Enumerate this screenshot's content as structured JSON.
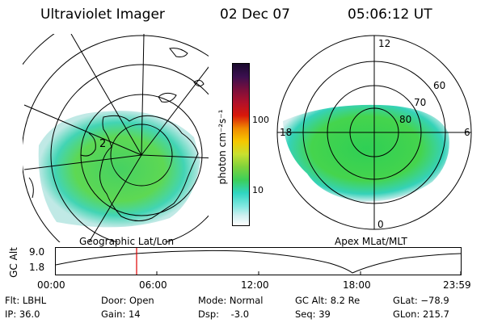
{
  "header": {
    "instrument": "Ultraviolet Imager",
    "date": "02 Dec 07",
    "time": "05:06:12 UT"
  },
  "geo_map": {
    "label": "Geographic Lat/Lon",
    "lat_marker": "2"
  },
  "colorbar": {
    "unit_label": "photon cm⁻²s⁻¹",
    "ticks": [
      "100",
      "10"
    ],
    "colors": [
      "#1a0a2e",
      "#3b0f4f",
      "#7a0f3c",
      "#b0102a",
      "#d8180a",
      "#f08a00",
      "#f6c800",
      "#c8e030",
      "#7ed23c",
      "#3ccf5a",
      "#30d6c2",
      "#7fe8e0",
      "#cfeff0",
      "#ffffff"
    ]
  },
  "polar_map": {
    "label": "Apex MLat/MLT",
    "mlt_labels": [
      "12",
      "18",
      "6",
      "0"
    ],
    "mlat_labels": [
      "60",
      "70",
      "80"
    ]
  },
  "altitude_plot": {
    "ylabel": "GC Alt",
    "y_ticks": [
      "9.0",
      "1.8"
    ],
    "x_ticks": [
      "00:00",
      "06:00",
      "12:00",
      "18:00",
      "23:59"
    ],
    "current_time_color": "#e00000"
  },
  "info": {
    "filter": "Flt: LBHL",
    "ip": "IP: 36.0",
    "door": "Door: Open",
    "gain": "Gain: 14",
    "mode": "Mode: Normal",
    "dsp": "Dsp:    -3.0",
    "gc_alt": "GC Alt: 8.2 Re",
    "seq": "Seq: 39",
    "glat": "GLat: −78.9",
    "glon": "GLon: 215.7"
  }
}
